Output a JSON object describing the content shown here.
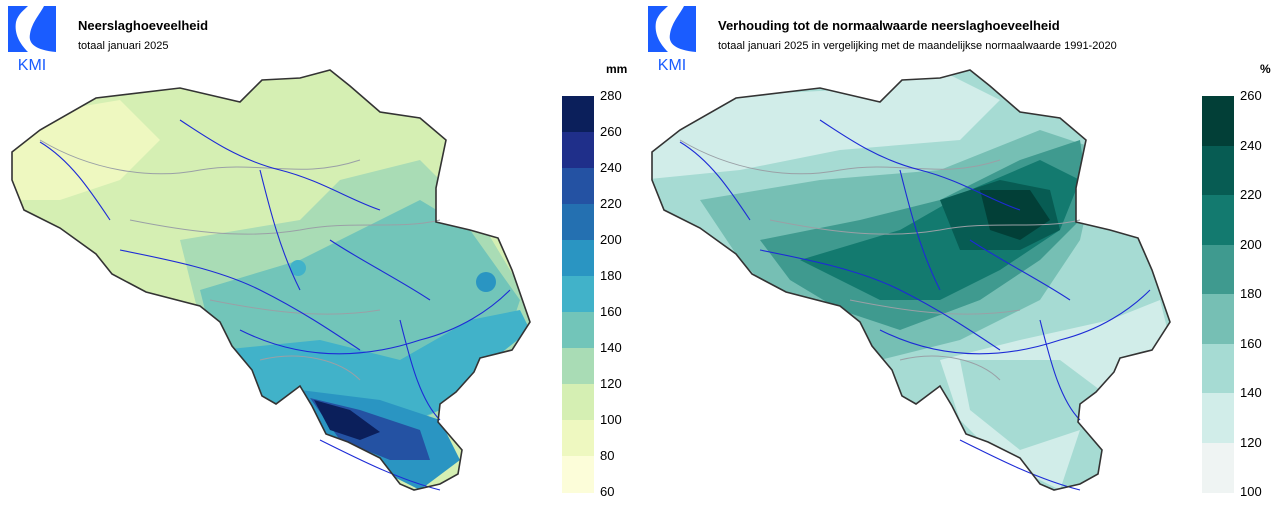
{
  "logo": {
    "text": "KMI",
    "color": "#1a5cff"
  },
  "left_panel": {
    "title": "Neerslaghoeveelheid",
    "subtitle": "totaal januari 2025",
    "legend": {
      "unit": "mm",
      "ticks": [
        "280",
        "260",
        "240",
        "220",
        "200",
        "180",
        "160",
        "140",
        "120",
        "100",
        "80",
        "60"
      ],
      "colors": [
        "#0b1f5b",
        "#1f2f8a",
        "#2452a3",
        "#2470b1",
        "#2a95c2",
        "#41b2c9",
        "#72c5b9",
        "#a9dcb5",
        "#d5efb3",
        "#eef8c0",
        "#fcfdd9"
      ]
    }
  },
  "right_panel": {
    "title": "Verhouding tot de normaalwaarde neerslaghoeveelheid",
    "subtitle": "totaal januari 2025 in vergelijking met de maandelijkse normaalwaarde 1991-2020",
    "legend": {
      "unit": "%",
      "ticks": [
        "260",
        "240",
        "220",
        "200",
        "180",
        "160",
        "140",
        "120",
        "100"
      ],
      "colors": [
        "#023f37",
        "#075c53",
        "#137a6f",
        "#3f9a8f",
        "#76bfb4",
        "#a6dbd3",
        "#d1ede9",
        "#eff4f3"
      ]
    }
  }
}
